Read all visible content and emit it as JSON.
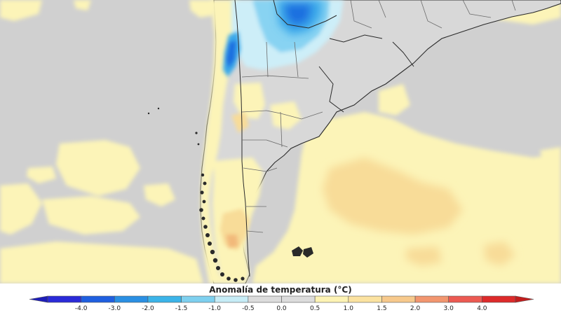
{
  "map": {
    "type": "temperature-anomaly-map",
    "region": "Southern South America",
    "colors": {
      "land": "#d5d5d5",
      "ocean": "#cfcfcf",
      "border": "#333333",
      "cold_strong": "#1e6fe0",
      "cold_medium": "#3aa9ea",
      "cold_light": "#88d3f2",
      "cold_faint": "#cdeef8",
      "warm_light": "#fcf4b8",
      "warm_medium": "#f8dc98",
      "warm_strong": "#f2b97a"
    }
  },
  "legend": {
    "title": "Anomalía de temperatura (°C)",
    "labels": [
      "-4.0",
      "-3.0",
      "-2.0",
      "-1.5",
      "-1.0",
      "-0.5",
      "0.0",
      "0.5",
      "1.0",
      "1.5",
      "2.0",
      "3.0",
      "4.0"
    ],
    "colors": [
      "#2a2ad8",
      "#1f5fe0",
      "#2a8fe3",
      "#3bb4e9",
      "#7ed0ef",
      "#c6ecf6",
      "#dcdcdc",
      "#dcdcdc",
      "#fdf3b4",
      "#fbe2a0",
      "#f7c98c",
      "#f2966f",
      "#ec5a52",
      "#dd2a2a"
    ],
    "left_arrow_color": "#1d1db8",
    "right_arrow_color": "#c21d1d"
  }
}
